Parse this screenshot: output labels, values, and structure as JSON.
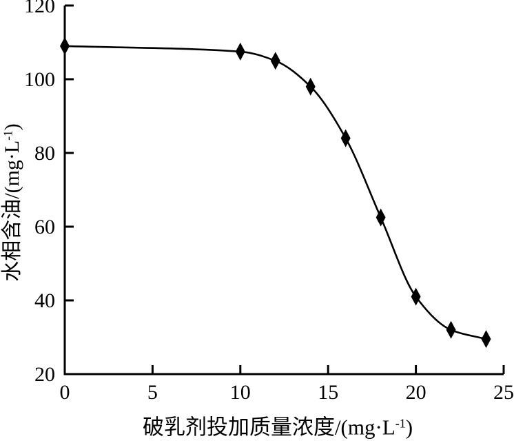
{
  "chart_data": {
    "type": "line",
    "title": "",
    "xlabel": "破乳剂投加质量浓度/(mg·L⁻¹)",
    "ylabel": "水相含油/(mg·L⁻¹)",
    "x": [
      0,
      10,
      12,
      14,
      16,
      18,
      20,
      22,
      24
    ],
    "series": [
      {
        "name": "水相含油",
        "values": [
          109,
          107.5,
          105,
          98,
          84,
          62.5,
          41,
          32,
          29.5
        ]
      }
    ],
    "xlim": [
      0,
      25
    ],
    "ylim": [
      20,
      120
    ],
    "xticks": [
      0,
      5,
      10,
      15,
      20,
      25
    ],
    "yticks": [
      20,
      40,
      60,
      80,
      100,
      120
    ],
    "grid": false,
    "legend": null,
    "marker": "diamond",
    "line_color": "#000000",
    "marker_color": "#000000",
    "axis_color": "#000000",
    "text_color": "#000000",
    "background": "#ffffff"
  },
  "axes": {
    "x_label": {
      "text": "破乳剂投加质量浓度/(mg·L",
      "sup": "-1",
      "close": ")"
    },
    "y_label": {
      "text": "水相含油/(mg·L",
      "sup": "-1",
      "close": ")"
    }
  }
}
